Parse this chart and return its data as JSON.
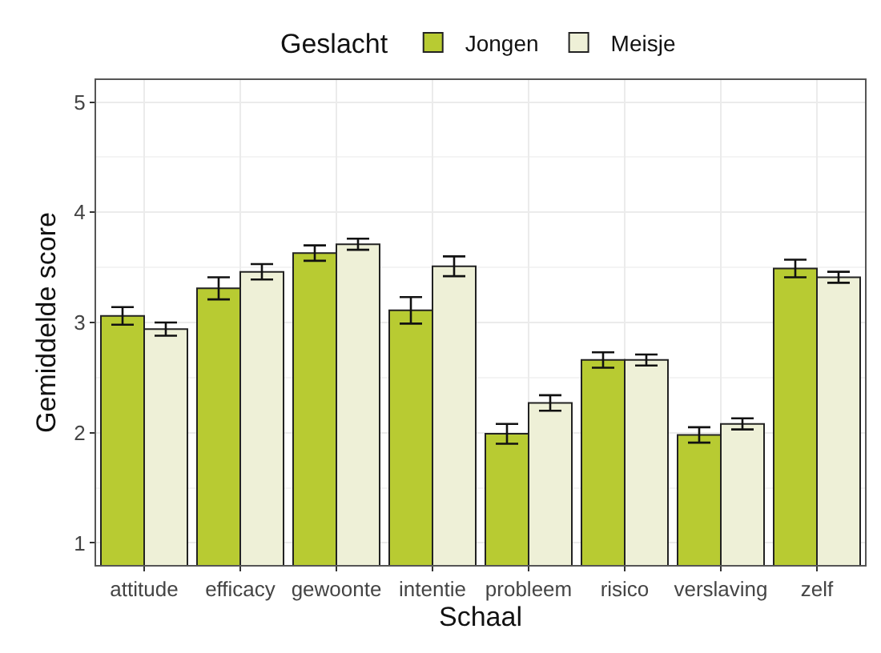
{
  "chart_data": {
    "type": "bar",
    "xlabel": "Schaal",
    "ylabel": "Gemiddelde score",
    "legend_title": "Geslacht",
    "legend": "top",
    "categories": [
      "attitude",
      "efficacy",
      "gewoonte",
      "intentie",
      "probleem",
      "risico",
      "verslaving",
      "zelf"
    ],
    "series": [
      {
        "name": "Jongen",
        "color": "#b8cb32",
        "values": [
          3.06,
          3.31,
          3.63,
          3.11,
          1.99,
          2.66,
          1.98,
          3.49
        ],
        "errors": [
          0.08,
          0.1,
          0.07,
          0.12,
          0.09,
          0.07,
          0.07,
          0.08
        ]
      },
      {
        "name": "Meisje",
        "color": "#eef0d7",
        "values": [
          2.94,
          3.46,
          3.71,
          3.51,
          2.27,
          2.66,
          2.08,
          3.41
        ],
        "errors": [
          0.06,
          0.07,
          0.05,
          0.09,
          0.07,
          0.05,
          0.05,
          0.05
        ]
      }
    ],
    "ylim": [
      0.8,
      5.2
    ],
    "yticks": [
      1,
      2,
      3,
      4,
      5
    ],
    "grid": true
  }
}
